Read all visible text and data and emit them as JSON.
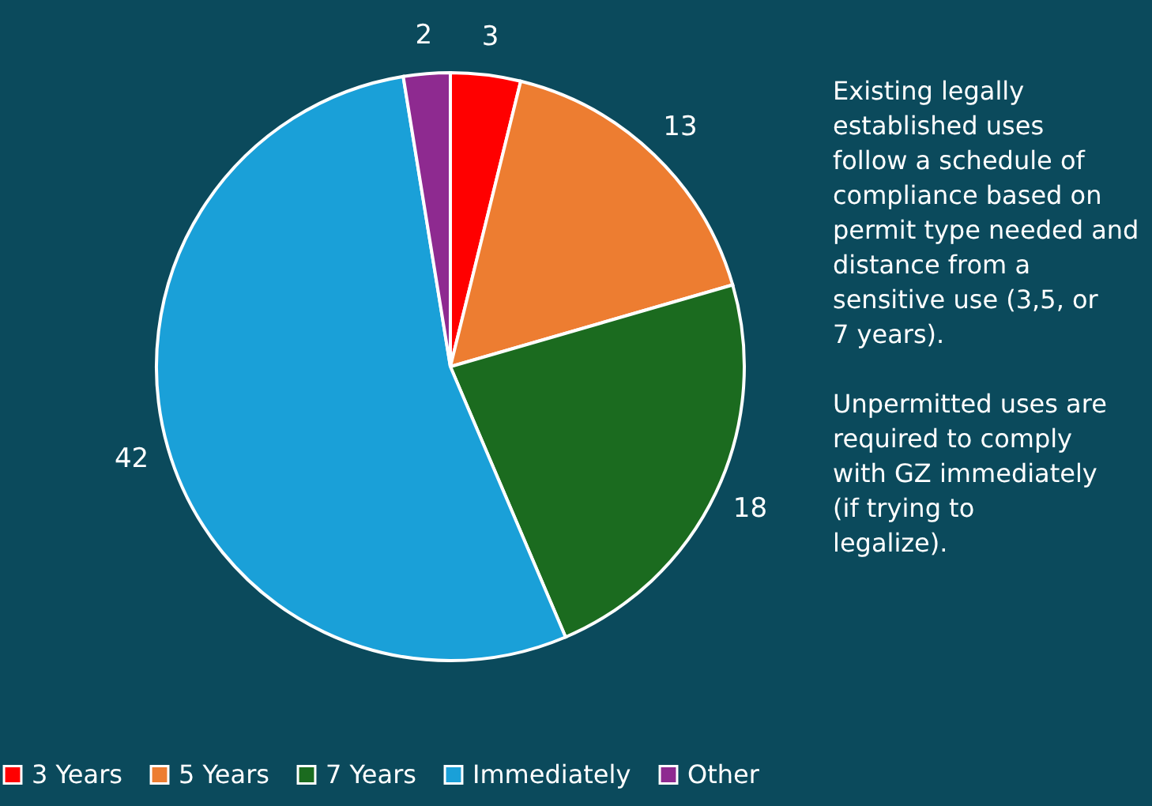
{
  "chart_data": {
    "type": "pie",
    "categories": [
      "3 Years",
      "5 Years",
      "7 Years",
      "Immediately",
      "Other"
    ],
    "values": [
      3,
      13,
      18,
      42,
      2
    ],
    "colors": [
      "#ff0000",
      "#ed7d31",
      "#1b6b1f",
      "#1aa0d8",
      "#8e2a90"
    ],
    "data_labels": true,
    "legend": "bottom",
    "annotations": [
      "Existing legally established uses follow a schedule of compliance based on permit type needed and distance from a sensitive use (3,5, or 7 years).",
      "Unpermitted uses are required to comply with GZ immediately (if trying to legalize)."
    ]
  }
}
